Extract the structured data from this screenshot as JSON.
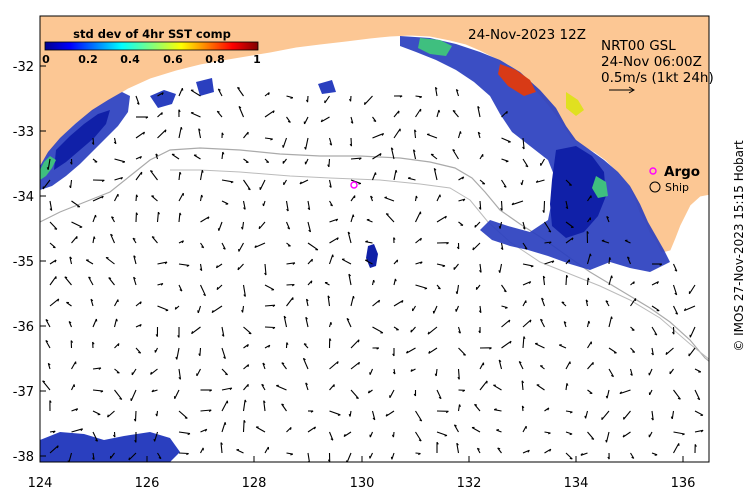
{
  "map": {
    "datetime_label": "24-Nov-2023 12Z",
    "product_label": "NRT00 GSL",
    "vector_time": "24-Nov 06:00Z",
    "scale_label": "0.5m/s (1kt 24h)",
    "colorbar": {
      "title": "std dev of 4hr SST comp",
      "ticks": [
        "0",
        "0.2",
        "0.4",
        "0.6",
        "0.8",
        "1"
      ],
      "range": [
        0,
        1
      ]
    },
    "legend": {
      "argo_label": "Argo",
      "ship_label": "Ship",
      "argo_color": "#ff00ff"
    },
    "x_ticks": [
      "124",
      "126",
      "128",
      "130",
      "132",
      "134",
      "136"
    ],
    "y_ticks": [
      "-32",
      "-33",
      "-34",
      "-35",
      "-36",
      "-37",
      "-38"
    ],
    "extent": {
      "lon": [
        124,
        136.5
      ],
      "lat": [
        -38.1,
        -31.35
      ]
    },
    "credit": "© IMOS 27-Nov-2023 15:15 Hobart",
    "colors": {
      "land": "#fcc794",
      "ocean": "#ffffff",
      "isobath": "#aaaaaa",
      "arrows": "#000000"
    }
  }
}
